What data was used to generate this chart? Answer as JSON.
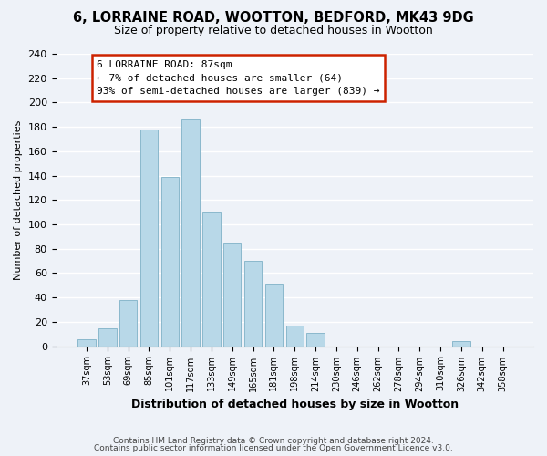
{
  "title1": "6, LORRAINE ROAD, WOOTTON, BEDFORD, MK43 9DG",
  "title2": "Size of property relative to detached houses in Wootton",
  "xlabel": "Distribution of detached houses by size in Wootton",
  "ylabel": "Number of detached properties",
  "bar_labels": [
    "37sqm",
    "53sqm",
    "69sqm",
    "85sqm",
    "101sqm",
    "117sqm",
    "133sqm",
    "149sqm",
    "165sqm",
    "181sqm",
    "198sqm",
    "214sqm",
    "230sqm",
    "246sqm",
    "262sqm",
    "278sqm",
    "294sqm",
    "310sqm",
    "326sqm",
    "342sqm",
    "358sqm"
  ],
  "bar_values": [
    6,
    15,
    38,
    178,
    139,
    186,
    110,
    85,
    70,
    51,
    17,
    11,
    0,
    0,
    0,
    0,
    0,
    0,
    4,
    0,
    0
  ],
  "bar_color": "#b8d8e8",
  "bar_edge_color": "#8ab8cc",
  "annotation_title": "6 LORRAINE ROAD: 87sqm",
  "annotation_line1": "← 7% of detached houses are smaller (64)",
  "annotation_line2": "93% of semi-detached houses are larger (839) →",
  "annotation_box_color": "#ffffff",
  "annotation_box_edge": "#cc2200",
  "ylim": [
    0,
    240
  ],
  "yticks": [
    0,
    20,
    40,
    60,
    80,
    100,
    120,
    140,
    160,
    180,
    200,
    220,
    240
  ],
  "footer1": "Contains HM Land Registry data © Crown copyright and database right 2024.",
  "footer2": "Contains public sector information licensed under the Open Government Licence v3.0.",
  "background_color": "#eef2f8",
  "grid_color": "#ffffff"
}
